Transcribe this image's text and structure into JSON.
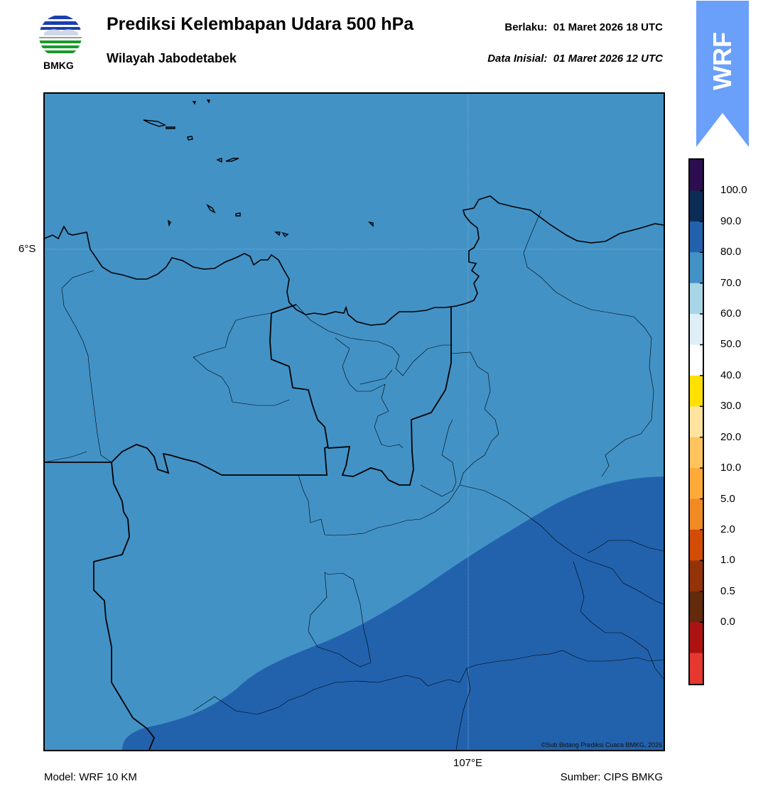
{
  "header": {
    "title": "Prediksi Kelembapan Udara 500 hPa",
    "subtitle": "Wilayah Jabodetabek",
    "valid_label": "Berlaku:",
    "valid_value": "01 Maret 2026 18 UTC",
    "init_label": "Data Inisial:",
    "init_value": "01 Maret 2026 12 UTC"
  },
  "logo": {
    "text": "BMKG",
    "icon": "bmkg-logo-icon"
  },
  "badge": {
    "text": "WRF",
    "color": "#6a9ffa"
  },
  "map": {
    "lat_label": "6°S",
    "lon_label": "107°E",
    "copyright": "©Sub Bidang Prediksi Cuaca BMKG, 2026",
    "fill_colors": {
      "humidity_70_80": "#4292c6",
      "humidity_80_90": "#2262ad"
    }
  },
  "colorbar": {
    "labels": [
      "100.0",
      "90.0",
      "80.0",
      "70.0",
      "60.0",
      "50.0",
      "40.0",
      "30.0",
      "20.0",
      "10.0",
      "5.0",
      "2.0",
      "1.0",
      "0.5",
      "0.0"
    ],
    "colors_top_to_bottom": [
      "#2c0e50",
      "#0a2c55",
      "#2262ad",
      "#4292c6",
      "#a8d5e6",
      "#e0eef7",
      "#ffffff",
      "#ffe000",
      "#ffe39f",
      "#ffc45d",
      "#ffaa38",
      "#f08a23",
      "#d24c06",
      "#953308",
      "#642a0c",
      "#ad1213",
      "#e63830"
    ]
  },
  "footer": {
    "model": "Model: WRF 10 KM",
    "source": "Sumber: CIPS BMKG"
  }
}
